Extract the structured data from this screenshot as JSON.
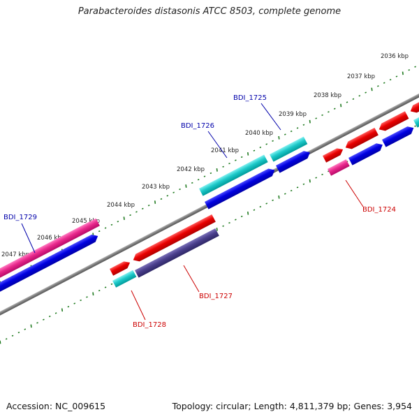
{
  "title": "Parabacteroides distasonis ATCC 8503, complete genome",
  "footer": {
    "accession": "Accession: NC_009615",
    "stats": "Topology: circular; Length: 4,811,379 bp; Genes: 3,954"
  },
  "colors": {
    "backbone": "#7a7a7a",
    "ticks": "#1f7a1f",
    "red_gene": "#e00000",
    "blue_gene": "#0000dd",
    "cyan_gene": "#00c8c8",
    "pink_gene": "#e8288c",
    "slate_gene": "#4a3f8c",
    "label_blue": "#0000aa",
    "label_red": "#cc0000"
  },
  "ticks": [
    {
      "label": "2036 kbp"
    },
    {
      "label": "2037 kbp"
    },
    {
      "label": "2038 kbp"
    },
    {
      "label": "2039 kbp"
    },
    {
      "label": "2040 kbp"
    },
    {
      "label": "2041 kbp"
    },
    {
      "label": "2042 kbp"
    },
    {
      "label": "2043 kbp"
    },
    {
      "label": "2044 kbp"
    },
    {
      "label": "2045 kbp"
    },
    {
      "label": "2046 kbp"
    },
    {
      "label": "2047 kbp"
    }
  ],
  "gene_labels": [
    {
      "text": "BDI_1725",
      "color": "label_blue"
    },
    {
      "text": "BDI_1726",
      "color": "label_blue"
    },
    {
      "text": "BDI_1729",
      "color": "label_blue"
    },
    {
      "text": "BDI_1724",
      "color": "label_red"
    },
    {
      "text": "BDI_1727",
      "color": "label_red"
    },
    {
      "text": "BDI_1728",
      "color": "label_red"
    }
  ]
}
